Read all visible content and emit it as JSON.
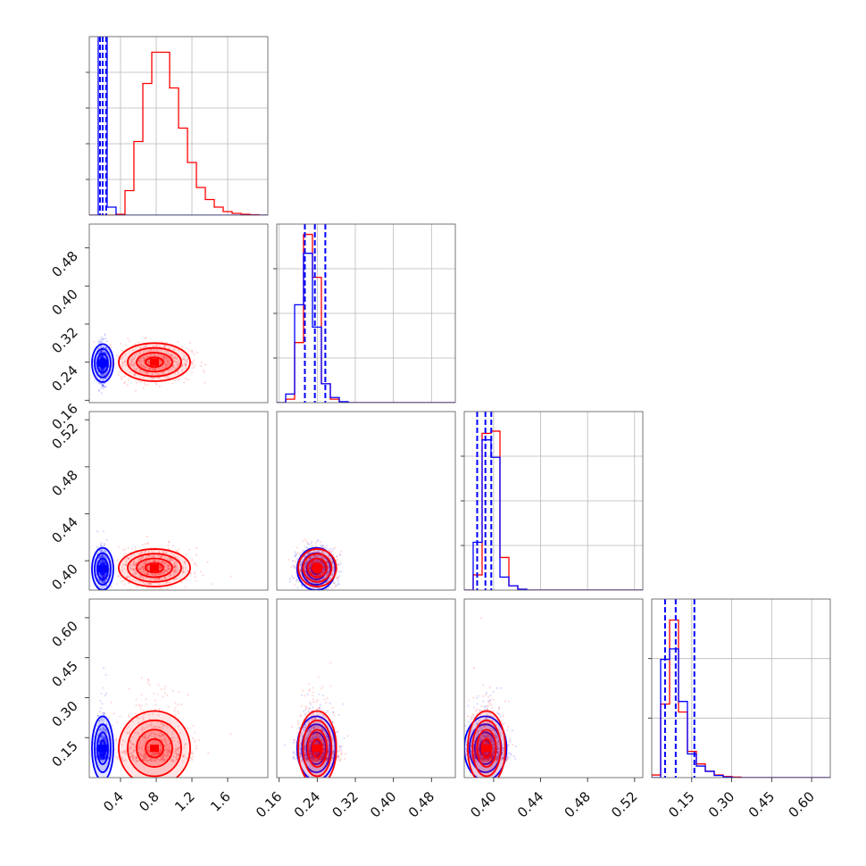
{
  "chart_data": {
    "type": "corner-plot",
    "colors": {
      "blue": "#0000ff",
      "red": "#ff0000",
      "grid": "#b9b9b9"
    },
    "series": [
      {
        "color": "#0000ff",
        "mean": [
          0.2,
          0.238,
          0.393,
          0.11
        ],
        "sd": [
          0.03,
          0.02,
          0.009,
          0.06
        ],
        "quantiles": [
          [
            0.17,
            0.2,
            0.24
          ],
          [
            0.214,
            0.235,
            0.257
          ],
          [
            0.386,
            0.393,
            0.398
          ],
          [
            0.05,
            0.09,
            0.16
          ]
        ]
      },
      {
        "color": "#ff0000",
        "mean": [
          0.78,
          0.24,
          0.394,
          0.11
        ],
        "sd": [
          0.2,
          0.02,
          0.008,
          0.07
        ],
        "quantiles": null
      }
    ],
    "params": [
      {
        "range": [
          0.05,
          2.05
        ],
        "ticks": [
          "0.4",
          "0.8",
          "1.2",
          "1.6"
        ],
        "tick_values": [
          0.4,
          0.8,
          1.2,
          1.6
        ]
      },
      {
        "range": [
          0.155,
          0.53
        ],
        "ticks": [
          "0.16",
          "0.24",
          "0.32",
          "0.40",
          "0.48"
        ],
        "tick_values": [
          0.16,
          0.24,
          0.32,
          0.4,
          0.48
        ]
      },
      {
        "range": [
          0.375,
          0.527
        ],
        "ticks": [
          "0.40",
          "0.44",
          "0.48",
          "0.52"
        ],
        "tick_values": [
          0.4,
          0.44,
          0.48,
          0.52
        ]
      },
      {
        "range": [
          0.0,
          0.67
        ],
        "ticks": [
          "0.15",
          "0.30",
          "0.45",
          "0.60"
        ],
        "tick_values": [
          0.15,
          0.3,
          0.45,
          0.6
        ]
      }
    ],
    "row_tick_labels": [
      null,
      [
        "0.16",
        "0.24",
        "0.32",
        "0.40",
        "0.48"
      ],
      [
        "0.40",
        "0.44",
        "0.48",
        "0.52"
      ],
      [
        "0.15",
        "0.30",
        "0.45",
        "0.60"
      ]
    ],
    "histograms": {
      "0": {
        "blue": [
          0,
          4.5,
          0.18,
          0,
          0,
          0,
          0,
          0,
          0,
          0,
          0,
          0,
          0,
          0,
          0,
          0,
          0,
          0,
          0,
          0
        ],
        "red": [
          0,
          0,
          0,
          0.02,
          0.55,
          1.65,
          2.95,
          3.65,
          3.65,
          2.85,
          1.95,
          1.18,
          0.62,
          0.35,
          0.18,
          0.08,
          0.04,
          0.02,
          0.01,
          0
        ],
        "ymax": 4.0,
        "n_yticks": 5,
        "blue_lines": [
          0.17,
          0.2,
          0.24
        ]
      },
      "1": {
        "blue": [
          0,
          0.25,
          2.85,
          4.35,
          2.2,
          0.55,
          0.15,
          0.03,
          0,
          0,
          0,
          0,
          0,
          0,
          0,
          0,
          0,
          0,
          0,
          0
        ],
        "red": [
          0,
          0.1,
          1.75,
          4.9,
          3.65,
          0.55,
          0.1,
          0.02,
          0,
          0,
          0,
          0,
          0,
          0,
          0,
          0,
          0,
          0,
          0,
          0
        ],
        "ymax": 5.2,
        "n_yticks": 4,
        "blue_lines": [
          0.214,
          0.235,
          0.257
        ]
      },
      "2": {
        "blue": [
          0,
          1.1,
          3.45,
          3.05,
          0.3,
          0.1,
          0.02,
          0,
          0,
          0,
          0,
          0,
          0,
          0,
          0,
          0,
          0,
          0,
          0,
          0
        ],
        "red": [
          0,
          0.35,
          3.6,
          3.65,
          0.75,
          0.1,
          0.02,
          0,
          0,
          0,
          0,
          0,
          0,
          0,
          0,
          0,
          0,
          0,
          0,
          0
        ],
        "ymax": 4.1,
        "n_yticks": 4,
        "blue_lines": [
          0.386,
          0.393,
          0.398
        ]
      },
      "3": {
        "blue": [
          0,
          2.25,
          2.45,
          1.45,
          0.45,
          0.22,
          0.12,
          0.04,
          0.01,
          0,
          0,
          0,
          0,
          0,
          0,
          0,
          0,
          0,
          0,
          0
        ],
        "red": [
          0.05,
          1.4,
          3.0,
          1.25,
          0.5,
          0.26,
          0.12,
          0.05,
          0.02,
          0.01,
          0,
          0,
          0,
          0,
          0,
          0,
          0,
          0,
          0,
          0
        ],
        "ymax": 3.4,
        "n_yticks": 3,
        "blue_lines": [
          0.05,
          0.09,
          0.16
        ]
      }
    },
    "grid": true
  }
}
